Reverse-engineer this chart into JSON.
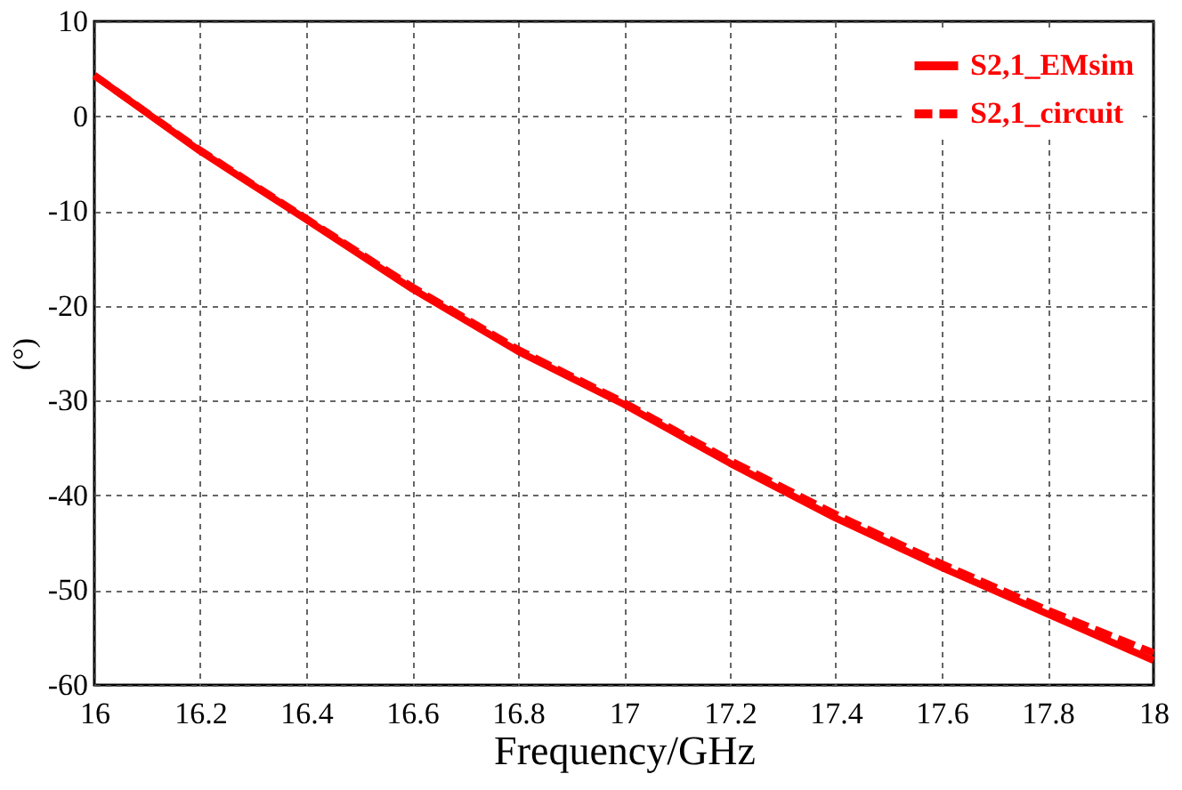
{
  "chart_data": {
    "type": "line",
    "xlabel": "Frequency/GHz",
    "ylabel": "(°)",
    "x": [
      16,
      16.2,
      16.4,
      16.6,
      16.8,
      17,
      17.2,
      17.4,
      17.6,
      17.8,
      18
    ],
    "series": [
      {
        "name": "S2,1_EMsim",
        "color": "#ff0000",
        "line_style": "solid",
        "values": [
          4.3,
          -3.7,
          -10.9,
          -18.2,
          -24.8,
          -30.4,
          -36.6,
          -42.4,
          -47.6,
          -52.5,
          -57.4
        ]
      },
      {
        "name": "S2,1_circuit",
        "color": "#ff0000",
        "line_style": "dashed",
        "values": [
          4.3,
          -3.6,
          -10.8,
          -18.0,
          -24.6,
          -30.2,
          -36.3,
          -42.0,
          -47.2,
          -52.1,
          -56.6
        ]
      }
    ],
    "xlim": [
      16,
      18
    ],
    "xticks": [
      16,
      16.2,
      16.4,
      16.6,
      16.8,
      17,
      17.2,
      17.4,
      17.6,
      17.8,
      18
    ],
    "ylim": [
      -60,
      10
    ],
    "yticks": [
      -60,
      -50,
      -40,
      -30,
      -20,
      -10,
      0,
      10
    ],
    "grid": true,
    "legend": "top right",
    "marker": "none"
  }
}
